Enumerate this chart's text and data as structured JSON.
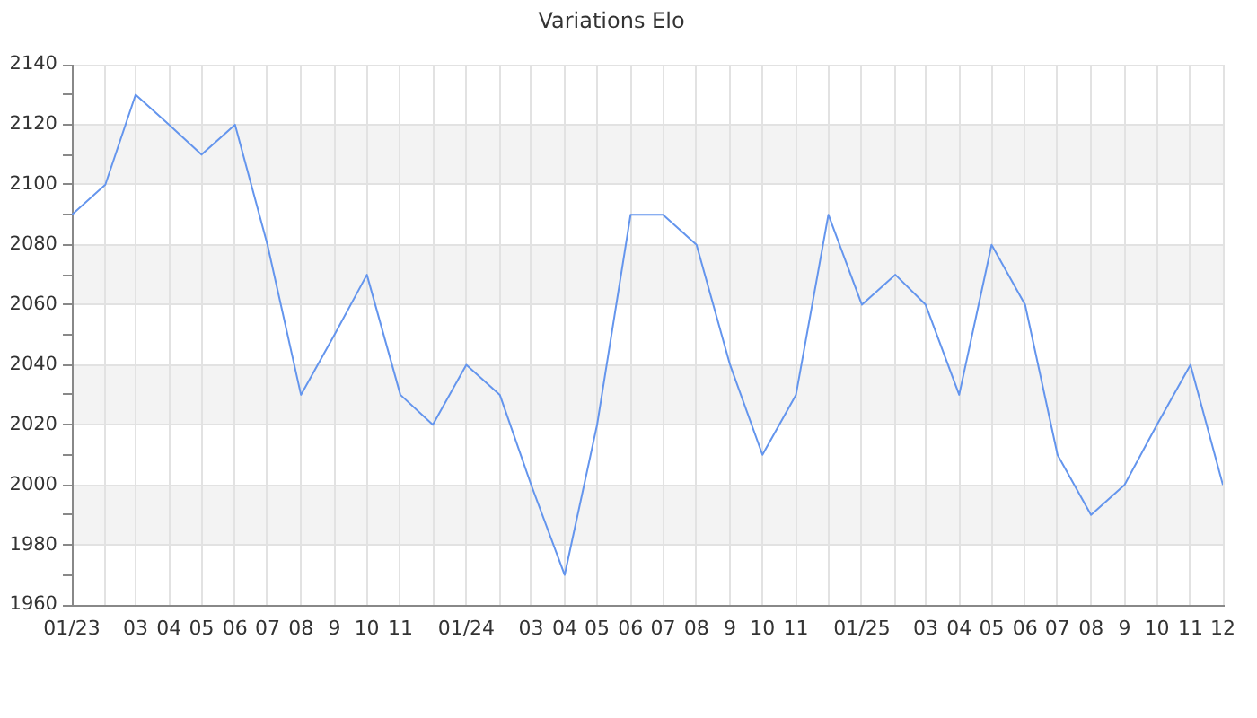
{
  "chart_data": {
    "type": "line",
    "title": "Variations Elo",
    "x": [
      "2023-01",
      "2023-02",
      "2023-03",
      "2023-04",
      "2023-05",
      "2023-06",
      "2023-07",
      "2023-08",
      "2023-09",
      "2023-10",
      "2023-11",
      "2023-12",
      "2024-01",
      "2024-02",
      "2024-03",
      "2024-04",
      "2024-05",
      "2024-06",
      "2024-07",
      "2024-08",
      "2024-09",
      "2024-10",
      "2024-11",
      "2024-12",
      "2025-01",
      "2025-02",
      "2025-03",
      "2025-04",
      "2025-05",
      "2025-06",
      "2025-07",
      "2025-08",
      "2025-09",
      "2025-10",
      "2025-11",
      "2025-12"
    ],
    "series": [
      {
        "color": "#6495ed",
        "values": [
          2090,
          2100,
          2130,
          2120,
          2110,
          2120,
          2080,
          2030,
          2050,
          2070,
          2030,
          2020,
          2040,
          2030,
          2000,
          1970,
          2020,
          2090,
          2090,
          2080,
          2040,
          2010,
          2030,
          2090,
          2060,
          2070,
          2060,
          2030,
          2080,
          2060,
          2010,
          1990,
          2000,
          2020,
          2040,
          2000
        ]
      }
    ],
    "xlim": [
      "2023-01",
      "2025-12"
    ],
    "xticks": [
      {
        "value": "2023-01",
        "label": "01/23"
      },
      {
        "value": "2023-02",
        "label": null
      },
      {
        "value": "2023-03",
        "label": "03"
      },
      {
        "value": "2023-04",
        "label": "04"
      },
      {
        "value": "2023-05",
        "label": "05"
      },
      {
        "value": "2023-06",
        "label": "06"
      },
      {
        "value": "2023-07",
        "label": "07"
      },
      {
        "value": "2023-08",
        "label": "08"
      },
      {
        "value": "2023-09",
        "label": "9"
      },
      {
        "value": "2023-10",
        "label": "10"
      },
      {
        "value": "2023-11",
        "label": "11"
      },
      {
        "value": "2023-12",
        "label": null
      },
      {
        "value": "2024-01",
        "label": "01/24"
      },
      {
        "value": "2024-02",
        "label": null
      },
      {
        "value": "2024-03",
        "label": "03"
      },
      {
        "value": "2024-04",
        "label": "04"
      },
      {
        "value": "2024-05",
        "label": "05"
      },
      {
        "value": "2024-06",
        "label": "06"
      },
      {
        "value": "2024-07",
        "label": "07"
      },
      {
        "value": "2024-08",
        "label": "08"
      },
      {
        "value": "2024-09",
        "label": "9"
      },
      {
        "value": "2024-10",
        "label": "10"
      },
      {
        "value": "2024-11",
        "label": "11"
      },
      {
        "value": "2024-12",
        "label": null
      },
      {
        "value": "2025-01",
        "label": "01/25"
      },
      {
        "value": "2025-02",
        "label": null
      },
      {
        "value": "2025-03",
        "label": "03"
      },
      {
        "value": "2025-04",
        "label": "04"
      },
      {
        "value": "2025-05",
        "label": "05"
      },
      {
        "value": "2025-06",
        "label": "06"
      },
      {
        "value": "2025-07",
        "label": "07"
      },
      {
        "value": "2025-08",
        "label": "08"
      },
      {
        "value": "2025-09",
        "label": "9"
      },
      {
        "value": "2025-10",
        "label": "10"
      },
      {
        "value": "2025-11",
        "label": "11"
      },
      {
        "value": "2025-12",
        "label": "12"
      }
    ],
    "ylim": [
      1960,
      2140
    ],
    "yticks": [
      1960,
      {
        "value": 1970,
        "label": null
      },
      1980,
      {
        "value": 1990,
        "label": null
      },
      2000,
      {
        "value": 2010,
        "label": null
      },
      2020,
      {
        "value": 2030,
        "label": null
      },
      2040,
      {
        "value": 2050,
        "label": null
      },
      2060,
      {
        "value": 2070,
        "label": null
      },
      2080,
      {
        "value": 2090,
        "label": null
      },
      2100,
      {
        "value": 2110,
        "label": null
      },
      2120,
      {
        "value": 2130,
        "label": null
      },
      2140
    ],
    "grid": true,
    "bands": [
      {
        "axis": "y",
        "from": 1980,
        "to": 2000,
        "color": "#f3f3f3"
      },
      {
        "axis": "y",
        "from": 2020,
        "to": 2040,
        "color": "#f3f3f3"
      },
      {
        "axis": "y",
        "from": 2060,
        "to": 2080,
        "color": "#f3f3f3"
      },
      {
        "axis": "y",
        "from": 2100,
        "to": 2120,
        "color": "#f3f3f3"
      }
    ]
  }
}
